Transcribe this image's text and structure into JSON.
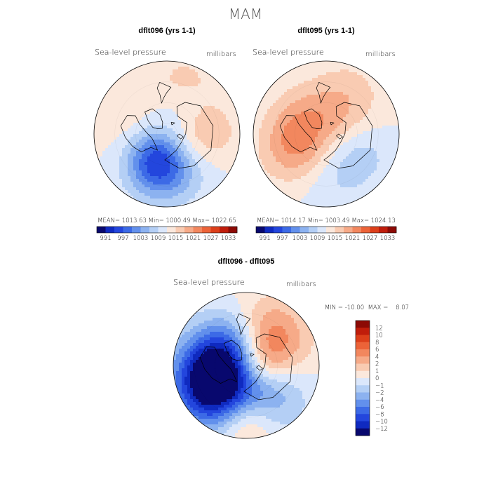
{
  "page_title": "MAM",
  "colors": {
    "scale": [
      "#08086e",
      "#0f2ac0",
      "#2346dd",
      "#3c6ae6",
      "#6290ec",
      "#8cb2f0",
      "#b4cff5",
      "#dbe7fb",
      "#fbe8dc",
      "#f9cbb2",
      "#f6aa88",
      "#f2875e",
      "#ec6338",
      "#dc3f1a",
      "#c01d0b",
      "#8c0a05"
    ]
  },
  "chart_data": [
    {
      "id": "map1",
      "type": "heatmap",
      "title": "dflt096 (yrs 1-1)",
      "variable": "Sea-level pressure",
      "units": "millibars",
      "stats_text": "MEAN= 1013.63   Min= 1000.49   Max= 1022.65",
      "stats": {
        "mean": 1013.63,
        "min": 1000.49,
        "max": 1022.65
      },
      "colorbar_ticks": [
        "991",
        "997",
        "1003",
        "1009",
        "1015",
        "1021",
        "1027",
        "1033"
      ],
      "blobs": [
        {
          "lat": 58,
          "lon": 195,
          "value": -11,
          "r": 0.3
        },
        {
          "lat": 62,
          "lon": 170,
          "value": -6,
          "r": 0.38
        },
        {
          "lat": 68,
          "lon": 215,
          "value": -4,
          "r": 0.25
        },
        {
          "lat": 55,
          "lon": 300,
          "value": 3,
          "r": 0.4
        },
        {
          "lat": 75,
          "lon": 110,
          "value": 4,
          "r": 0.3
        },
        {
          "lat": 50,
          "lon": 90,
          "value": 5,
          "r": 0.3
        },
        {
          "lat": 40,
          "lon": 20,
          "value": 4,
          "r": 0.35
        },
        {
          "lat": 60,
          "lon": 40,
          "value": -2,
          "r": 0.25
        },
        {
          "lat": 72,
          "lon": 0,
          "value": -3,
          "r": 0.3
        }
      ]
    },
    {
      "id": "map2",
      "type": "heatmap",
      "title": "dflt095 (yrs 1-1)",
      "variable": "Sea-level pressure",
      "units": "millibars",
      "stats_text": "MEAN= 1014.17   Min= 1003.49   Max= 1024.13",
      "stats": {
        "mean": 1014.17,
        "min": 1003.49,
        "max": 1024.13
      },
      "colorbar_ticks": [
        "991",
        "997",
        "1003",
        "1009",
        "1015",
        "1021",
        "1027",
        "1033"
      ],
      "blobs": [
        {
          "lat": 65,
          "lon": 260,
          "value": 8,
          "r": 0.35
        },
        {
          "lat": 55,
          "lon": 230,
          "value": 5,
          "r": 0.35
        },
        {
          "lat": 60,
          "lon": 180,
          "value": -5,
          "r": 0.4
        },
        {
          "lat": 50,
          "lon": 30,
          "value": 5,
          "r": 0.35
        },
        {
          "lat": 50,
          "lon": 120,
          "value": -3,
          "r": 0.3
        },
        {
          "lat": 75,
          "lon": 60,
          "value": 2,
          "r": 0.25
        },
        {
          "lat": 60,
          "lon": 320,
          "value": 3,
          "r": 0.3
        }
      ]
    },
    {
      "id": "diff",
      "type": "heatmap",
      "title": "dflt096 - dflt095",
      "variable": "Sea-level pressure",
      "units": "millibars",
      "stats_text": "MIN = -10.00  MAX =    8.07",
      "stats": {
        "min": -10.0,
        "max": 8.07
      },
      "colorbar_ticks": [
        "12",
        "10",
        "8",
        "6",
        "4",
        "2",
        "1",
        "0",
        "−1",
        "−2",
        "−4",
        "−6",
        "−8",
        "−10",
        "−12"
      ],
      "blobs": [
        {
          "lat": 65,
          "lon": 260,
          "value": -10,
          "r": 0.4
        },
        {
          "lat": 52,
          "lon": 230,
          "value": -8,
          "r": 0.4
        },
        {
          "lat": 60,
          "lon": 40,
          "value": 7,
          "r": 0.38
        },
        {
          "lat": 75,
          "lon": 90,
          "value": 3,
          "r": 0.25
        },
        {
          "lat": 55,
          "lon": 150,
          "value": -5,
          "r": 0.38
        },
        {
          "lat": 40,
          "lon": 180,
          "value": 6,
          "r": 0.3
        },
        {
          "lat": 75,
          "lon": 200,
          "value": 2,
          "r": 0.25
        },
        {
          "lat": 60,
          "lon": 340,
          "value": -3,
          "r": 0.3
        }
      ]
    }
  ]
}
